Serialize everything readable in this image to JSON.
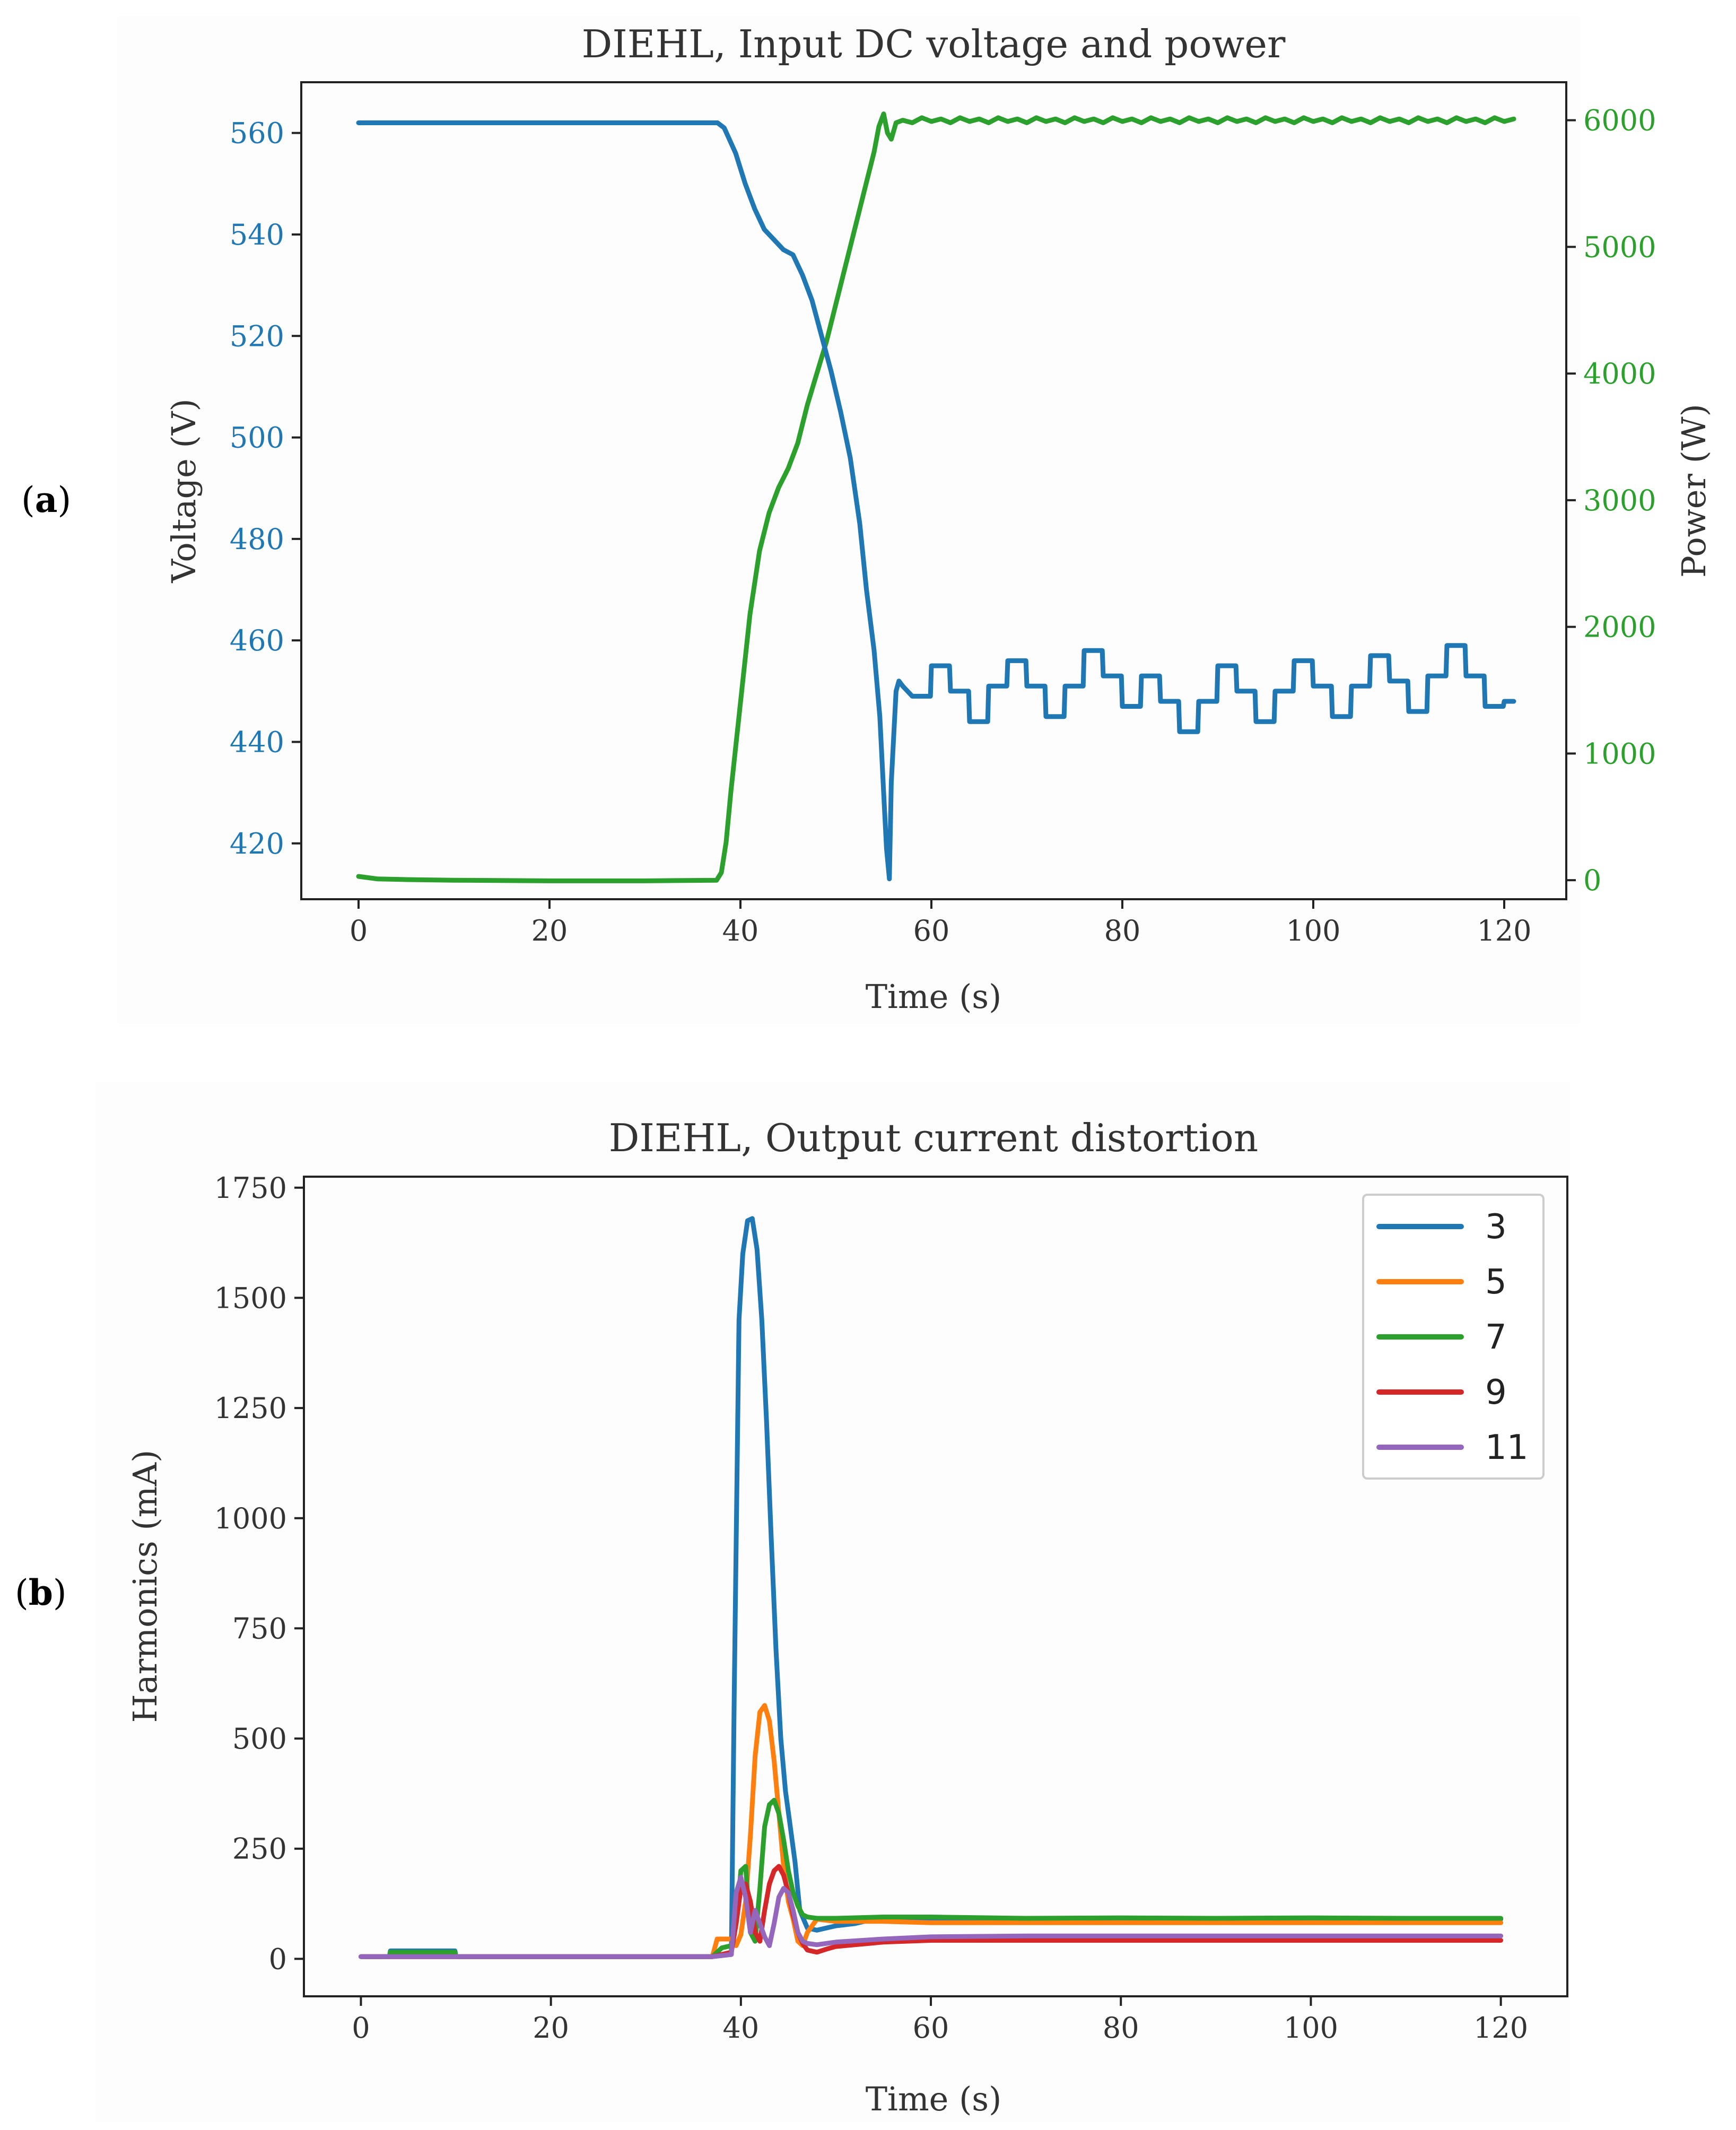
{
  "figure": {
    "panel_a_label": "a",
    "panel_b_label": "b"
  },
  "chart_data": [
    {
      "type": "line",
      "title": "DIEHL, Input DC voltage and power",
      "xlabel": "Time (s)",
      "ylabel_left": "Voltage (V)",
      "ylabel_right": "Power (W)",
      "xlim": [
        -6,
        126.5
      ],
      "ylim_left": [
        409,
        570
      ],
      "ylim_right": [
        -150,
        6300
      ],
      "xticks": [
        0,
        20,
        40,
        60,
        80,
        100,
        120
      ],
      "yticks_left": [
        420,
        440,
        460,
        480,
        500,
        520,
        540,
        560
      ],
      "yticks_right": [
        0,
        1000,
        2000,
        3000,
        4000,
        5000,
        6000
      ],
      "left_color": "#1f77b4",
      "right_color": "#2ca02c",
      "grid": false,
      "series": [
        {
          "name": "Voltage",
          "axis": "left",
          "color": "#1f77b4",
          "x": [
            0,
            37.6,
            38.3,
            39.5,
            40.5,
            41.5,
            42.5,
            43.5,
            44.5,
            45.5,
            46.5,
            47.5,
            48.5,
            49.5,
            50.5,
            51.5,
            52.5,
            53.2,
            54,
            54.6,
            55,
            55.3,
            55.6,
            55.8,
            56.3,
            56.6,
            57,
            57.5,
            58,
            59.9,
            60,
            61.9,
            62,
            63.9,
            64,
            65.9,
            66,
            67.9,
            68,
            69.9,
            70,
            71.9,
            72,
            73.9,
            74,
            75.9,
            76,
            77.9,
            78,
            79.9,
            80,
            81.9,
            82,
            83.9,
            84,
            85.9,
            86,
            87.9,
            88,
            89.9,
            90,
            91.9,
            92,
            93.9,
            94,
            95.9,
            96,
            97.9,
            98,
            99.9,
            100,
            101.9,
            102,
            103.9,
            104,
            105.9,
            106,
            107.9,
            108,
            109.9,
            110,
            111.9,
            112,
            113.9,
            114,
            115.9,
            116,
            117.9,
            118,
            119.9,
            120,
            121
          ],
          "y": [
            562,
            562,
            561,
            556,
            550,
            545,
            541,
            539,
            537,
            536,
            532,
            527,
            520,
            513,
            505,
            496,
            483,
            470,
            458,
            445,
            430,
            419,
            413,
            432,
            450,
            452,
            451,
            450,
            449,
            449,
            455,
            455,
            450,
            450,
            444,
            444,
            451,
            451,
            456,
            456,
            451,
            451,
            445,
            445,
            451,
            451,
            458,
            458,
            453,
            453,
            447,
            447,
            453,
            453,
            448,
            448,
            442,
            442,
            448,
            448,
            455,
            455,
            450,
            450,
            444,
            444,
            450,
            450,
            456,
            456,
            451,
            451,
            445,
            445,
            451,
            451,
            457,
            457,
            452,
            452,
            446,
            446,
            453,
            453,
            459,
            459,
            453,
            453,
            447,
            447,
            448,
            448
          ]
        },
        {
          "name": "Power",
          "axis": "right",
          "color": "#2ca02c",
          "x": [
            0,
            2,
            5,
            10,
            20,
            30,
            37.5,
            38,
            38.5,
            39,
            40,
            41,
            42,
            43,
            44,
            45,
            46,
            47,
            48,
            49,
            50,
            51,
            52,
            53,
            54,
            54.5,
            55,
            55.4,
            55.8,
            56.3,
            57,
            58,
            59,
            60,
            61,
            62,
            63,
            64,
            65,
            66,
            67,
            68,
            69,
            70,
            71,
            72,
            73,
            74,
            75,
            76,
            77,
            78,
            79,
            80,
            81,
            82,
            83,
            84,
            85,
            86,
            87,
            88,
            89,
            90,
            91,
            92,
            93,
            94,
            95,
            96,
            97,
            98,
            99,
            100,
            101,
            102,
            103,
            104,
            105,
            106,
            107,
            108,
            109,
            110,
            111,
            112,
            113,
            114,
            115,
            116,
            117,
            118,
            119,
            120,
            121
          ],
          "y": [
            30,
            10,
            5,
            0,
            -5,
            -5,
            0,
            60,
            300,
            700,
            1400,
            2100,
            2600,
            2900,
            3100,
            3250,
            3450,
            3750,
            4000,
            4250,
            4550,
            4850,
            5150,
            5450,
            5750,
            5950,
            6050,
            5900,
            5850,
            5980,
            6000,
            5980,
            6020,
            5990,
            6010,
            5980,
            6020,
            5990,
            6010,
            5980,
            6020,
            5990,
            6010,
            5980,
            6020,
            5990,
            6010,
            5980,
            6020,
            5990,
            6010,
            5980,
            6020,
            5990,
            6010,
            5980,
            6020,
            5990,
            6010,
            5980,
            6020,
            5990,
            6010,
            5980,
            6020,
            5990,
            6010,
            5980,
            6020,
            5990,
            6010,
            5980,
            6020,
            5990,
            6010,
            5980,
            6020,
            5990,
            6010,
            5980,
            6020,
            5990,
            6010,
            5980,
            6020,
            5990,
            6010,
            5980,
            6020,
            5990,
            6010,
            5980,
            6020,
            5990,
            6010
          ]
        }
      ]
    },
    {
      "type": "line",
      "title": "DIEHL, Output current distortion",
      "xlabel": "Time (s)",
      "ylabel": "Harmonics (mA)",
      "xlim": [
        -6,
        127
      ],
      "ylim": [
        -85,
        1775
      ],
      "xticks": [
        0,
        20,
        40,
        60,
        80,
        100,
        120
      ],
      "yticks": [
        0,
        250,
        500,
        750,
        1000,
        1250,
        1500,
        1750
      ],
      "grid": false,
      "legend_position": "top-right",
      "series": [
        {
          "name": "3",
          "color": "#1f77b4",
          "x": [
            0,
            3,
            3.1,
            9.9,
            10,
            30,
            37,
            39,
            39.3,
            39.8,
            40.2,
            40.7,
            41.2,
            41.7,
            42.2,
            42.7,
            43.2,
            43.7,
            44.2,
            44.7,
            45.2,
            45.7,
            46.2,
            47,
            48,
            49,
            50,
            52,
            54,
            55,
            56,
            57,
            58,
            60,
            70,
            80,
            90,
            100,
            110,
            120
          ],
          "y": [
            5,
            5,
            18,
            18,
            5,
            5,
            5,
            10,
            600,
            1450,
            1600,
            1675,
            1680,
            1610,
            1450,
            1220,
            950,
            700,
            500,
            380,
            300,
            220,
            110,
            70,
            65,
            70,
            75,
            80,
            90,
            95,
            92,
            90,
            85,
            88,
            90,
            88,
            90,
            89,
            90,
            90
          ]
        },
        {
          "name": "5",
          "color": "#ff7f0e",
          "x": [
            0,
            37,
            37.5,
            39,
            39.5,
            40,
            40.5,
            41,
            41.5,
            42,
            42.5,
            43,
            43.5,
            44,
            44.5,
            45,
            45.5,
            46,
            46.5,
            47,
            48,
            50,
            55,
            60,
            70,
            80,
            90,
            100,
            110,
            120
          ],
          "y": [
            5,
            5,
            45,
            45,
            30,
            55,
            130,
            280,
            460,
            560,
            575,
            540,
            450,
            330,
            210,
            130,
            90,
            40,
            30,
            60,
            90,
            85,
            85,
            82,
            82,
            82,
            82,
            82,
            82,
            82
          ]
        },
        {
          "name": "7",
          "color": "#2ca02c",
          "x": [
            0,
            3,
            3.1,
            9.9,
            10,
            37,
            38,
            39,
            39.5,
            40,
            40.5,
            41,
            41.5,
            42,
            42.5,
            43,
            43.5,
            44,
            44.5,
            45,
            45.5,
            46,
            46.5,
            47,
            48,
            50,
            55,
            60,
            70,
            80,
            90,
            100,
            110,
            120
          ],
          "y": [
            5,
            5,
            15,
            15,
            5,
            5,
            25,
            30,
            80,
            200,
            210,
            60,
            40,
            160,
            300,
            350,
            360,
            330,
            270,
            200,
            150,
            120,
            100,
            95,
            92,
            92,
            95,
            95,
            92,
            93,
            92,
            93,
            92,
            92
          ]
        },
        {
          "name": "9",
          "color": "#d62728",
          "x": [
            0,
            37,
            39,
            39.5,
            40,
            40.5,
            41,
            41.5,
            42,
            42.5,
            43,
            43.5,
            44,
            44.5,
            45,
            45.5,
            46,
            46.5,
            47,
            48,
            49,
            50,
            52,
            55,
            60,
            70,
            80,
            90,
            100,
            110,
            120
          ],
          "y": [
            5,
            5,
            15,
            80,
            160,
            170,
            130,
            60,
            40,
            110,
            170,
            200,
            210,
            190,
            150,
            100,
            60,
            35,
            20,
            15,
            22,
            28,
            32,
            38,
            42,
            42,
            42,
            42,
            42,
            42,
            42
          ]
        },
        {
          "name": "11",
          "color": "#9467bd",
          "x": [
            0,
            37,
            39,
            39.5,
            40,
            40.5,
            41,
            41.5,
            42,
            42.5,
            43,
            43.5,
            44,
            44.5,
            45,
            45.5,
            46,
            46.5,
            47,
            48,
            50,
            55,
            60,
            70,
            80,
            90,
            100,
            110,
            120
          ],
          "y": [
            5,
            5,
            10,
            150,
            185,
            140,
            60,
            110,
            80,
            50,
            30,
            80,
            140,
            160,
            150,
            110,
            60,
            40,
            35,
            32,
            38,
            45,
            50,
            52,
            52,
            52,
            52,
            52,
            52
          ]
        }
      ]
    }
  ]
}
